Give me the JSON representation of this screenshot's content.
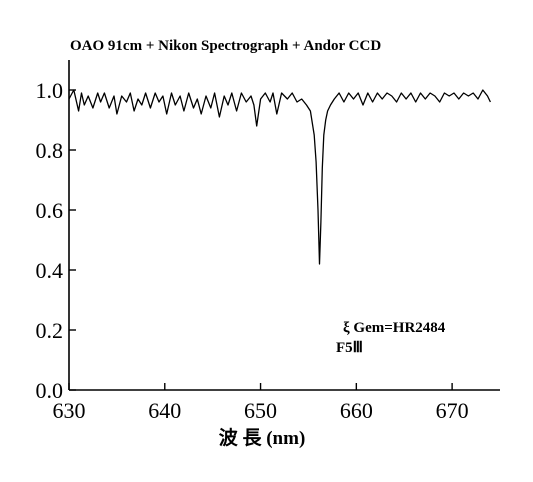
{
  "chart_data": {
    "type": "line",
    "title": "OAO 91cm + Nikon Spectrograph + Andor CCD",
    "xlabel": "波 長 (nm)",
    "ylabel": "",
    "xlim": [
      630,
      675
    ],
    "ylim": [
      0.0,
      1.1
    ],
    "x_ticks": [
      630,
      640,
      650,
      660,
      670
    ],
    "y_ticks": [
      0.0,
      0.2,
      0.4,
      0.6,
      0.8,
      1.0
    ],
    "x_tick_labels": [
      "630",
      "640",
      "650",
      "660",
      "670"
    ],
    "y_tick_labels": [
      "0.0",
      "0.2",
      "0.4",
      "0.6",
      "0.8",
      "1.0"
    ],
    "grid": false,
    "annotations": [
      "ξ Gem=HR2484",
      "F5Ⅲ"
    ],
    "series": [
      {
        "x": [
          630.0,
          630.5,
          631.0,
          631.3,
          631.6,
          632.0,
          632.5,
          633.0,
          633.3,
          633.7,
          634.2,
          634.7,
          635.0,
          635.5,
          636.0,
          636.4,
          636.8,
          637.2,
          637.6,
          638.0,
          638.5,
          639.0,
          639.4,
          639.8,
          640.2,
          640.7,
          641.1,
          641.6,
          642.0,
          642.5,
          643.0,
          643.4,
          643.8,
          644.3,
          644.8,
          645.2,
          645.7,
          646.2,
          646.6,
          647.0,
          647.5,
          648.0,
          648.5,
          649.0,
          649.3,
          649.6,
          650.0,
          650.5,
          651.0,
          651.3,
          651.7,
          652.2,
          652.8,
          653.3,
          653.8,
          654.3,
          654.8,
          655.2,
          655.6,
          655.8,
          656.0,
          656.15,
          656.3,
          656.45,
          656.6,
          656.8,
          657.0,
          657.3,
          657.7,
          658.2,
          658.7,
          659.2,
          659.7,
          660.2,
          660.7,
          661.2,
          661.7,
          662.2,
          662.7,
          663.2,
          663.7,
          664.2,
          664.7,
          665.2,
          665.7,
          666.2,
          666.7,
          667.2,
          667.7,
          668.2,
          668.7,
          669.2,
          669.7,
          670.2,
          670.7,
          671.2,
          671.7,
          672.2,
          672.7,
          673.2,
          673.7,
          674.0
        ],
        "y": [
          0.97,
          1.0,
          0.93,
          0.99,
          0.95,
          0.98,
          0.94,
          0.99,
          0.96,
          0.99,
          0.94,
          0.98,
          0.92,
          0.98,
          0.96,
          0.99,
          0.93,
          0.97,
          0.95,
          0.99,
          0.94,
          0.99,
          0.96,
          0.98,
          0.92,
          0.99,
          0.95,
          0.98,
          0.93,
          0.99,
          0.94,
          0.97,
          0.92,
          0.98,
          0.94,
          0.99,
          0.91,
          0.98,
          0.95,
          0.99,
          0.93,
          0.99,
          0.96,
          0.98,
          0.95,
          0.88,
          0.97,
          0.99,
          0.96,
          0.99,
          0.92,
          0.99,
          0.97,
          0.99,
          0.96,
          0.97,
          0.95,
          0.93,
          0.85,
          0.76,
          0.6,
          0.42,
          0.56,
          0.74,
          0.85,
          0.9,
          0.93,
          0.95,
          0.97,
          0.99,
          0.96,
          0.99,
          0.97,
          0.99,
          0.95,
          0.99,
          0.96,
          0.99,
          0.97,
          0.99,
          0.98,
          0.96,
          0.99,
          0.97,
          0.99,
          0.96,
          0.99,
          0.97,
          0.99,
          0.98,
          0.96,
          0.99,
          0.98,
          0.99,
          0.97,
          0.99,
          0.98,
          0.99,
          0.97,
          1.0,
          0.98,
          0.96
        ]
      }
    ]
  }
}
